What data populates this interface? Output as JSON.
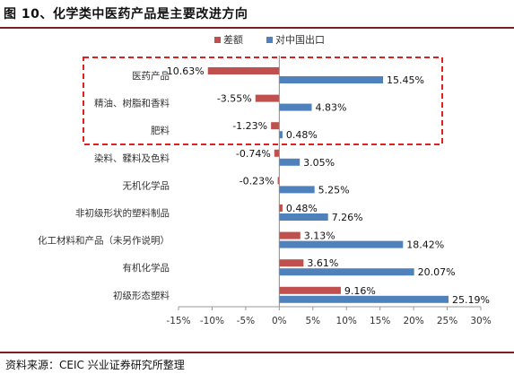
{
  "title": "图 10、化学类中医药产品是主要改进方向",
  "source": "资料来源：CEIC   兴业证券研究所整理",
  "colors": {
    "diff": "#c0504d",
    "export": "#4f81bd",
    "highlight": "#e02020",
    "text": "#333333"
  },
  "chart_data": {
    "type": "bar",
    "orientation": "horizontal",
    "categories": [
      "医药产品",
      "精油、树脂和香料",
      "肥料",
      "染料、鞣料及色料",
      "无机化学品",
      "非初级形状的塑料制品",
      "化工材料和产品（未另作说明）",
      "有机化学品",
      "初级形态塑料"
    ],
    "series": [
      {
        "name": "差额",
        "color": "#c0504d",
        "values": [
          -10.63,
          -3.55,
          -1.23,
          -0.74,
          -0.23,
          0.48,
          3.13,
          3.61,
          9.16
        ]
      },
      {
        "name": "对中国出口",
        "color": "#4f81bd",
        "values": [
          15.45,
          4.83,
          0.48,
          3.05,
          5.25,
          7.26,
          18.42,
          20.07,
          25.19
        ]
      }
    ],
    "data_labels": [
      [
        "-10.63%",
        "15.45%"
      ],
      [
        "-3.55%",
        "4.83%"
      ],
      [
        "-1.23%",
        "0.48%"
      ],
      [
        "-0.74%",
        "3.05%"
      ],
      [
        "-0.23%",
        "5.25%"
      ],
      [
        "0.48%",
        "7.26%"
      ],
      [
        "3.13%",
        "18.42%"
      ],
      [
        "3.61%",
        "20.07%"
      ],
      [
        "9.16%",
        "25.19%"
      ]
    ],
    "xlim": [
      -15,
      30
    ],
    "xticks": [
      -15,
      -10,
      -5,
      0,
      5,
      10,
      15,
      20,
      25,
      30
    ],
    "xtick_labels": [
      "-15%",
      "-10%",
      "-5%",
      "0%",
      "5%",
      "10%",
      "15%",
      "20%",
      "25%",
      "30%"
    ],
    "legend_position": "top",
    "grid": false,
    "highlight_box": "first three categories"
  }
}
